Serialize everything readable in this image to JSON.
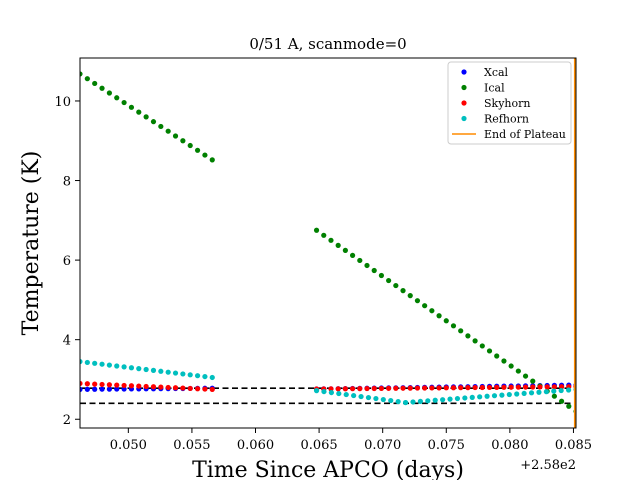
{
  "chart_data": {
    "type": "scatter",
    "title": "0/51 A, scanmode=0",
    "xlabel": "Time Since APCO (days)",
    "ylabel": "Temperature (K)",
    "x_offset_label": "+2.58e2",
    "xlim": [
      0.0462,
      0.0852
    ],
    "ylim": [
      1.78,
      11.08
    ],
    "xticks": [
      0.05,
      0.055,
      0.06,
      0.065,
      0.07,
      0.075,
      0.08,
      0.085
    ],
    "xtick_labels": [
      "0.050",
      "0.055",
      "0.060",
      "0.065",
      "0.070",
      "0.075",
      "0.080",
      "0.085"
    ],
    "yticks": [
      2,
      4,
      6,
      8,
      10
    ],
    "ytick_labels": [
      "2",
      "4",
      "6",
      "8",
      "10"
    ],
    "grid": false,
    "legend_position": "top-right",
    "series": [
      {
        "name": "Xcal",
        "color": "#0000ff",
        "segments": [
          {
            "x_start": 0.0462,
            "x_end": 0.0566,
            "y_start": 2.75,
            "y_end": 2.78,
            "n": 19
          },
          {
            "x_start": 0.0648,
            "x_end": 0.0852,
            "y_start": 2.76,
            "y_end": 2.86,
            "n": 37
          }
        ]
      },
      {
        "name": "Ical",
        "color": "#008000",
        "segments": [
          {
            "x_start": 0.0462,
            "x_end": 0.0566,
            "y_start": 10.68,
            "y_end": 8.52,
            "n": 19
          },
          {
            "x_start": 0.0648,
            "x_end": 0.0852,
            "y_start": 6.75,
            "y_end": 2.2,
            "n": 37
          }
        ]
      },
      {
        "name": "Skyhorn",
        "color": "#ff0000",
        "segments": [
          {
            "x_start": 0.0462,
            "x_end": 0.0566,
            "y_start": 2.9,
            "y_end": 2.75,
            "n": 19
          },
          {
            "x_start": 0.0648,
            "x_end": 0.0852,
            "y_start": 2.76,
            "y_end": 2.82,
            "n": 37
          }
        ]
      },
      {
        "name": "Refhorn",
        "color": "#00bfbf",
        "segments": [
          {
            "x_start": 0.0462,
            "x_end": 0.0566,
            "y_start": 3.45,
            "y_end": 3.05,
            "n": 19
          },
          {
            "x_start": 0.0648,
            "x_end": 0.0718,
            "y_start": 2.72,
            "y_end": 2.42,
            "n": 13
          },
          {
            "x_start": 0.0718,
            "x_end": 0.0852,
            "y_start": 2.42,
            "y_end": 2.75,
            "n": 24
          }
        ]
      }
    ],
    "vertical_lines": [
      {
        "name": "End of Plateau",
        "x": 0.0851,
        "color": "#ff8c00"
      }
    ],
    "horizontal_lines": [
      {
        "y": 2.78,
        "color": "#000000",
        "style": "dashed"
      },
      {
        "y": 2.4,
        "color": "#000000",
        "style": "dashed"
      }
    ],
    "legend": [
      {
        "label": "Xcal",
        "color": "#0000ff",
        "marker": "dot"
      },
      {
        "label": "Ical",
        "color": "#008000",
        "marker": "dot"
      },
      {
        "label": "Skyhorn",
        "color": "#ff0000",
        "marker": "dot"
      },
      {
        "label": "Refhorn",
        "color": "#00bfbf",
        "marker": "dot"
      },
      {
        "label": "End of Plateau",
        "color": "#ff8c00",
        "marker": "line"
      }
    ]
  }
}
